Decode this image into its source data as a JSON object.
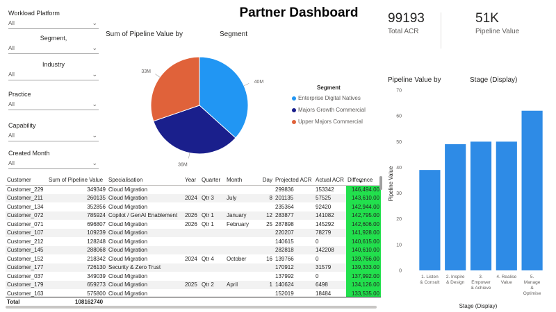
{
  "dashboard": {
    "title": "Partner Dashboard"
  },
  "filters": [
    {
      "label": "Workload Platform",
      "value": "All"
    },
    {
      "label": "Segment,",
      "value": "All"
    },
    {
      "label": "Industry",
      "value": "All"
    },
    {
      "label": "Practice",
      "value": "All"
    },
    {
      "label": "Capability",
      "value": "All"
    },
    {
      "label": "Created Month",
      "value": "All"
    }
  ],
  "kpis": {
    "total_acr": {
      "value": "99193",
      "label": "Total ACR"
    },
    "pipeline_value": {
      "value": "51K",
      "label": "Pipeline Value"
    }
  },
  "pie": {
    "title_left": "Sum of Pipeline Value by",
    "title_right": "Segment",
    "legend_title": "Segment",
    "colors": {
      "enterprise": "#2196f3",
      "majors": "#1a1f8c",
      "upper": "#e0623a"
    }
  },
  "bar": {
    "title_left": "Pipeline Value by",
    "title_right": "Stage (Display)",
    "bar_color": "#2e8be6"
  },
  "chart_data": [
    {
      "type": "pie",
      "title": "Sum of Pipeline Value by Segment",
      "categories": [
        "Enterprise Digital Natives",
        "Majors Growth Commercial",
        "Upper Majors Commercial"
      ],
      "values": [
        40,
        36,
        33
      ],
      "data_labels": [
        "40M",
        "36M",
        "33M"
      ],
      "legend": "right"
    },
    {
      "type": "bar",
      "title": "Pipeline Value by Stage (Display)",
      "categories": [
        "1. Listen & Consult",
        "2. Inspire & Design",
        "3. Empower & Achieve",
        "4. Realise Value",
        "5. Manage & Optimise"
      ],
      "category_lines": [
        [
          "1. Listen",
          "& Consult"
        ],
        [
          "2. Inspire",
          "& Design"
        ],
        [
          "3.",
          "Empower",
          "& Achieve"
        ],
        [
          "4. Realise",
          "Value"
        ],
        [
          "5.",
          "Manage",
          "&",
          "Optimise"
        ]
      ],
      "values": [
        39,
        49,
        50,
        50,
        62
      ],
      "xlabel": "Stage (Display)",
      "ylabel": "Pipeline Value",
      "ylim": [
        0,
        70
      ],
      "yticks": [
        0,
        10,
        20,
        30,
        40,
        50,
        60,
        70
      ],
      "grid": false
    }
  ],
  "table": {
    "columns": [
      "Customer",
      "Sum of Pipeline Value",
      "Specialisation",
      "Year",
      "Quarter",
      "Month",
      "Day",
      "Projected ACR",
      "Actual ACR",
      "Difference"
    ],
    "rows": [
      [
        "Customer_229",
        "349349",
        "Cloud Migration",
        "",
        "",
        "",
        "",
        "299836",
        "153342",
        "146,494.00"
      ],
      [
        "Customer_211",
        "260135",
        "Cloud Migration",
        "2024",
        "Qtr 3",
        "July",
        "8",
        "201135",
        "57525",
        "143,610.00"
      ],
      [
        "Customer_134",
        "352856",
        "Cloud Migration",
        "",
        "",
        "",
        "",
        "235364",
        "92420",
        "142,944.00"
      ],
      [
        "Customer_072",
        "785924",
        "Copilot / GenAI Enablement",
        "2026",
        "Qtr 1",
        "January",
        "12",
        "283877",
        "141082",
        "142,795.00"
      ],
      [
        "Customer_071",
        "696807",
        "Cloud Migration",
        "2026",
        "Qtr 1",
        "February",
        "25",
        "287898",
        "145292",
        "142,606.00"
      ],
      [
        "Customer_107",
        "109239",
        "Cloud Migration",
        "",
        "",
        "",
        "",
        "220207",
        "78279",
        "141,928.00"
      ],
      [
        "Customer_212",
        "128248",
        "Cloud Migration",
        "",
        "",
        "",
        "",
        "140615",
        "0",
        "140,615.00"
      ],
      [
        "Customer_145",
        "288068",
        "Cloud Migration",
        "",
        "",
        "",
        "",
        "282818",
        "142208",
        "140,610.00"
      ],
      [
        "Customer_152",
        "218342",
        "Cloud Migration",
        "2024",
        "Qtr 4",
        "October",
        "16",
        "139766",
        "0",
        "139,766.00"
      ],
      [
        "Customer_177",
        "726130",
        "Security & Zero Trust",
        "",
        "",
        "",
        "",
        "170912",
        "31579",
        "139,333.00"
      ],
      [
        "Customer_037",
        "349039",
        "Cloud Migration",
        "",
        "",
        "",
        "",
        "137992",
        "0",
        "137,992.00"
      ],
      [
        "Customer_179",
        "659273",
        "Cloud Migration",
        "2025",
        "Qtr 2",
        "April",
        "1",
        "140624",
        "6498",
        "134,126.00"
      ],
      [
        "Customer_163",
        "575800",
        "Cloud Migration",
        "",
        "",
        "",
        "",
        "152019",
        "18484",
        "133,535.00"
      ]
    ],
    "total_label": "Total",
    "total_value": "108162740",
    "sort_indicator": "▼"
  }
}
